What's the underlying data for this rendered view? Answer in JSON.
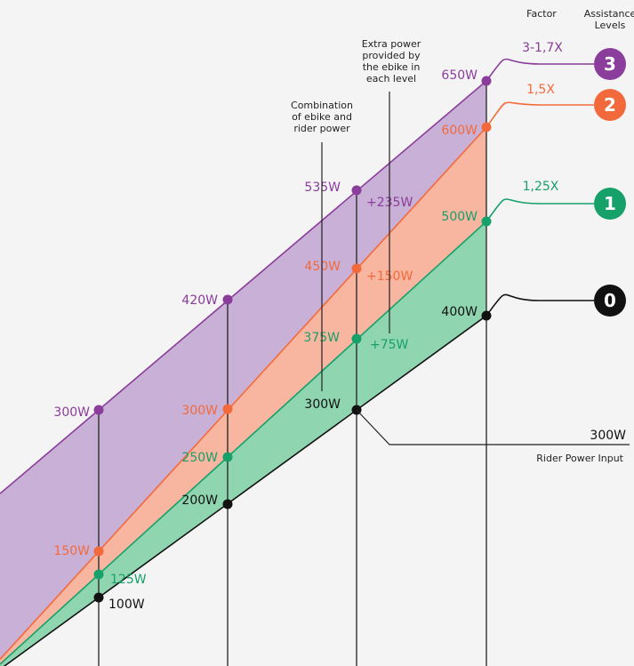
{
  "header": {
    "factor_label": "Factor",
    "assistance_label": [
      "Assistance",
      "Levels"
    ]
  },
  "annotations": {
    "combination": [
      "Combination",
      "of ebike and",
      "rider power"
    ],
    "extra": [
      "Extra power",
      "provided by",
      "the ebike in",
      "each level"
    ],
    "rider_input_label": "Rider Power Input",
    "rider_input_value": "300W"
  },
  "chart_data": {
    "type": "line",
    "title": "",
    "x": [
      100,
      200,
      300,
      400
    ],
    "colors": {
      "level0": "#111111",
      "level1": "#16a06a",
      "level2": "#f26a3c",
      "level3": "#8a3d9a",
      "fill1": "#8fd6b0",
      "fill2": "#f8b5a0",
      "fill3": "#c9b0d6"
    },
    "series": [
      {
        "key": "level0",
        "badge": "0",
        "factor": "",
        "values": [
          100,
          200,
          300,
          400
        ],
        "labels": [
          "100W",
          "200W",
          "300W",
          "400W"
        ]
      },
      {
        "key": "level1",
        "badge": "1",
        "factor": "1,25X",
        "values": [
          125,
          250,
          375,
          500
        ],
        "labels": [
          "125W",
          "250W",
          "375W",
          "500W"
        ]
      },
      {
        "key": "level2",
        "badge": "2",
        "factor": "1,5X",
        "values": [
          150,
          300,
          450,
          600
        ],
        "labels": [
          "150W",
          "300W",
          "450W",
          "600W"
        ]
      },
      {
        "key": "level3",
        "badge": "3",
        "factor": "3-1,7X",
        "values": [
          300,
          420,
          535,
          650
        ],
        "labels": [
          "300W",
          "420W",
          "535W",
          "650W"
        ]
      }
    ],
    "extra_power": [
      "+75W",
      "+150W",
      "+235W"
    ]
  }
}
